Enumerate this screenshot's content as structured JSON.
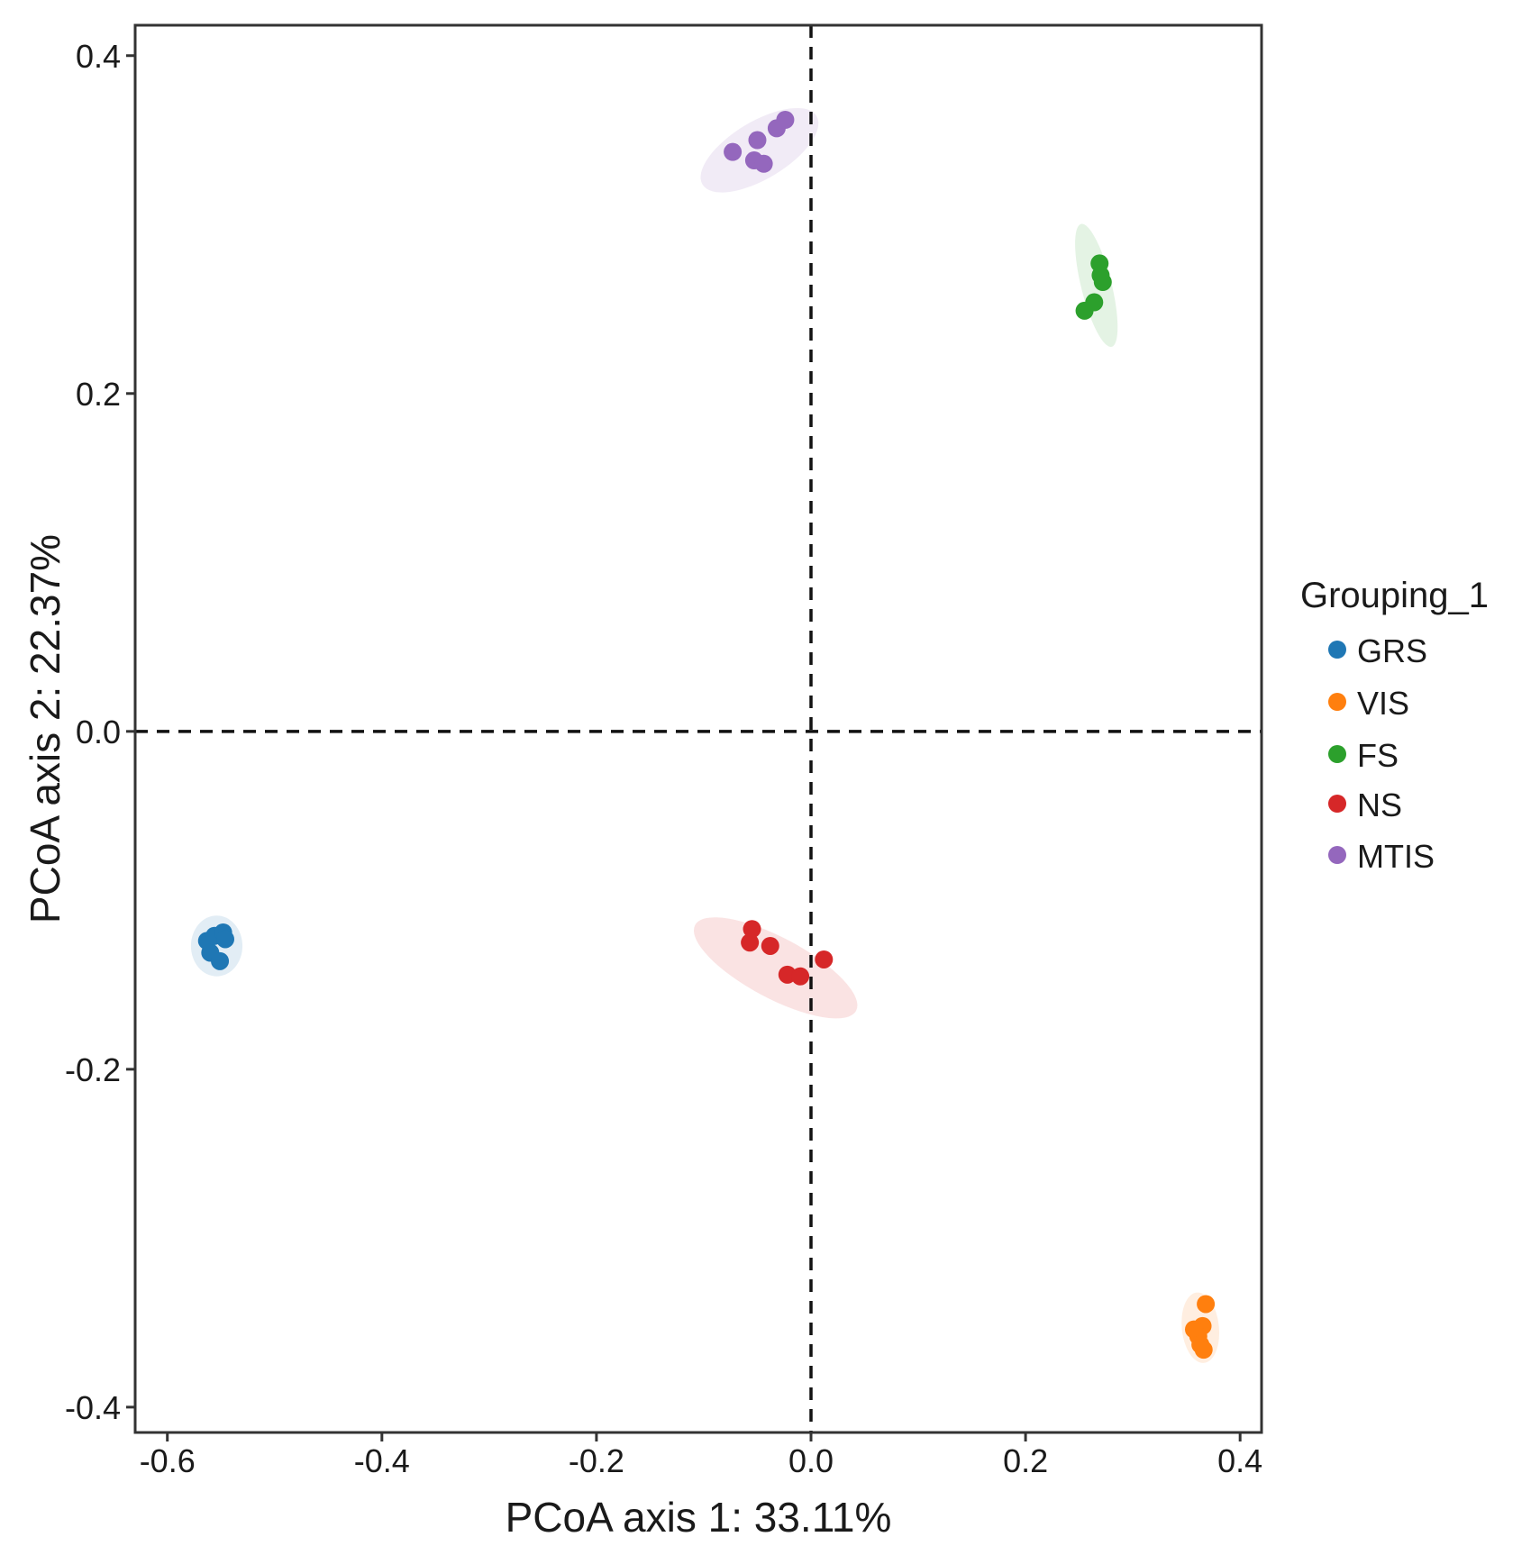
{
  "chart_data": {
    "type": "scatter",
    "title": "",
    "xlabel": "PCoA axis 1: 33.11%",
    "ylabel": "PCoA axis 2: 22.37%",
    "xlim": [
      -0.63,
      0.42
    ],
    "ylim": [
      -0.415,
      0.418
    ],
    "x_ticks": [
      -0.6,
      -0.4,
      -0.2,
      0.0,
      0.2,
      0.4
    ],
    "x_tick_labels": [
      "-0.6",
      "-0.4",
      "-0.2",
      "0.0",
      "0.2",
      "0.4"
    ],
    "y_ticks": [
      -0.4,
      -0.2,
      0.0,
      0.2,
      0.4
    ],
    "y_tick_labels": [
      "-0.4",
      "-0.2",
      "0.0",
      "0.2",
      "0.4"
    ],
    "reference_lines": {
      "x": 0.0,
      "y": 0.0,
      "style": "dashed"
    },
    "grid": false,
    "legend": {
      "title": "Grouping_1",
      "position": "right"
    },
    "series": [
      {
        "name": "GRS",
        "color": "#1f77b4",
        "points": [
          {
            "x": -0.563,
            "y": -0.124
          },
          {
            "x": -0.56,
            "y": -0.131
          },
          {
            "x": -0.556,
            "y": -0.121
          },
          {
            "x": -0.551,
            "y": -0.136
          },
          {
            "x": -0.548,
            "y": -0.119
          },
          {
            "x": -0.546,
            "y": -0.123
          }
        ],
        "ellipse": {
          "cx": -0.554,
          "cy": -0.127,
          "rx": 0.024,
          "ry": 0.018,
          "angle_deg": 0
        }
      },
      {
        "name": "VIS",
        "color": "#ff7f0e",
        "points": [
          {
            "x": 0.368,
            "y": -0.339
          },
          {
            "x": 0.365,
            "y": -0.352
          },
          {
            "x": 0.361,
            "y": -0.358
          },
          {
            "x": 0.357,
            "y": -0.354
          },
          {
            "x": 0.363,
            "y": -0.363
          },
          {
            "x": 0.366,
            "y": -0.366
          }
        ],
        "ellipse": {
          "cx": 0.363,
          "cy": -0.353,
          "rx": 0.033,
          "ry": 0.011,
          "angle_deg": 84
        }
      },
      {
        "name": "FS",
        "color": "#2ca02c",
        "points": [
          {
            "x": 0.269,
            "y": 0.277
          },
          {
            "x": 0.27,
            "y": 0.27
          },
          {
            "x": 0.272,
            "y": 0.266
          },
          {
            "x": 0.264,
            "y": 0.254
          },
          {
            "x": 0.255,
            "y": 0.249
          }
        ],
        "ellipse": {
          "cx": 0.266,
          "cy": 0.264,
          "rx": 0.059,
          "ry": 0.009,
          "angle_deg": 76
        }
      },
      {
        "name": "NS",
        "color": "#d62728",
        "points": [
          {
            "x": -0.055,
            "y": -0.117
          },
          {
            "x": -0.057,
            "y": -0.125
          },
          {
            "x": -0.038,
            "y": -0.127
          },
          {
            "x": -0.022,
            "y": -0.144
          },
          {
            "x": -0.01,
            "y": -0.145
          },
          {
            "x": 0.012,
            "y": -0.135
          }
        ],
        "ellipse": {
          "cx": -0.033,
          "cy": -0.14,
          "rx": 0.085,
          "ry": 0.018,
          "angle_deg": 28
        }
      },
      {
        "name": "MTIS",
        "color": "#9467bd",
        "points": [
          {
            "x": -0.073,
            "y": 0.343
          },
          {
            "x": -0.05,
            "y": 0.35
          },
          {
            "x": -0.053,
            "y": 0.338
          },
          {
            "x": -0.044,
            "y": 0.336
          },
          {
            "x": -0.032,
            "y": 0.357
          },
          {
            "x": -0.024,
            "y": 0.362
          }
        ],
        "ellipse": {
          "cx": -0.048,
          "cy": 0.344,
          "rx": 0.062,
          "ry": 0.017,
          "angle_deg": -31
        }
      }
    ]
  }
}
